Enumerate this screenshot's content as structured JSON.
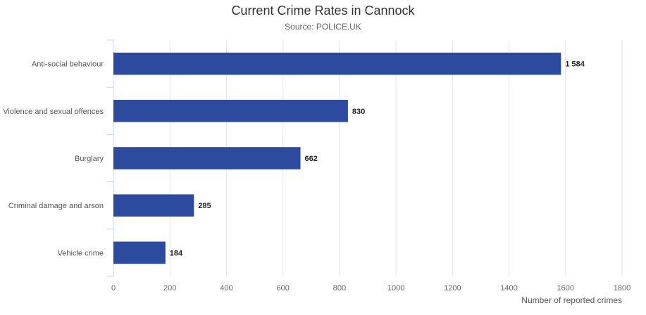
{
  "chart_data": {
    "type": "bar",
    "orientation": "horizontal",
    "title": "Current Crime Rates in Cannock",
    "subtitle": "Source: POLICE.UK",
    "categories": [
      "Anti-social behaviour",
      "Violence and sexual offences",
      "Burglary",
      "Criminal damage and arson",
      "Vehicle crime"
    ],
    "values": [
      1584,
      830,
      662,
      285,
      184
    ],
    "value_labels": [
      "1 584",
      "830",
      "662",
      "285",
      "184"
    ],
    "xlim": [
      0,
      1800
    ],
    "x_ticks": [
      0,
      200,
      400,
      600,
      800,
      1000,
      1200,
      1400,
      1600,
      1800
    ],
    "xlabel": "Number of reported crimes",
    "ylabel": "",
    "grid": true,
    "bar_color": "#2D4B9E"
  }
}
